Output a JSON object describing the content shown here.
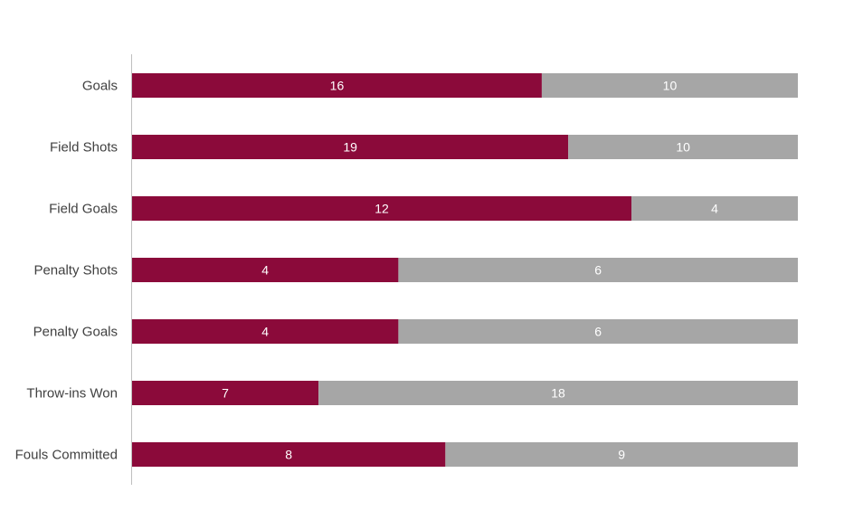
{
  "chart_data": {
    "type": "bar",
    "orientation": "horizontal",
    "stacked": "100%",
    "categories": [
      "Goals",
      "Field Shots",
      "Field Goals",
      "Penalty Shots",
      "Penalty Goals",
      "Throw-ins Won",
      "Fouls Committed"
    ],
    "series": [
      {
        "values": [
          16,
          19,
          12,
          4,
          4,
          7,
          8
        ],
        "color": "#8B0A3A"
      },
      {
        "values": [
          10,
          10,
          4,
          6,
          6,
          18,
          9
        ],
        "color": "#A6A6A6"
      }
    ],
    "title": "",
    "xlabel": "",
    "ylabel": "",
    "data_labels": true,
    "grid": false,
    "legend": "none"
  }
}
